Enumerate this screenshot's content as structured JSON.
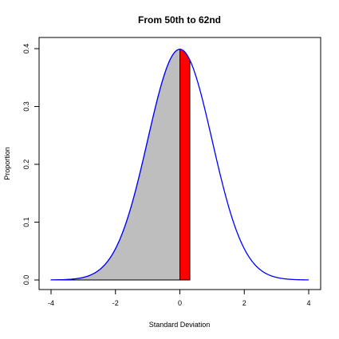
{
  "chart_data": {
    "type": "area",
    "title": "From 50th to 62nd",
    "xlabel": "Standard Deviation",
    "ylabel": "Proportion",
    "xlim": [
      -4,
      4
    ],
    "ylim": [
      0,
      0.4
    ],
    "x_ticks": [
      "-4",
      "-2",
      "0",
      "2",
      "4"
    ],
    "y_ticks": [
      "0.0",
      "0.1",
      "0.2",
      "0.3",
      "0.4"
    ],
    "curve": {
      "name": "",
      "distribution": "standard normal density",
      "x_range": [
        -4,
        4
      ],
      "color": "#0000ff"
    },
    "regions": [
      {
        "name": "",
        "from": -4,
        "to": 0,
        "fill": "#bebebe"
      },
      {
        "name": "",
        "from": 0,
        "to": 0.31,
        "fill": "#ff0000"
      }
    ]
  }
}
